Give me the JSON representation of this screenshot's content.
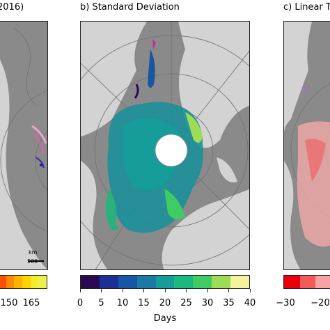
{
  "panels": {
    "a": {
      "title": "2016)"
    },
    "b": {
      "title": "b) Standard Deviation"
    },
    "c": {
      "title": "c) Linear T"
    }
  },
  "scalebar": {
    "unit": "km",
    "value": "500"
  },
  "colorbars": {
    "a": {
      "ticks": [
        "150",
        "165"
      ],
      "colors": [
        "#ff4f00",
        "#ff8a00",
        "#ffb300",
        "#ffd200",
        "#f3ee2d",
        "#eaf24a"
      ]
    },
    "b": {
      "ticks": [
        "0",
        "5",
        "10",
        "15",
        "20",
        "25",
        "30",
        "35",
        "40"
      ],
      "label": "Days",
      "colors": [
        "#2a0a55",
        "#1d2e94",
        "#1656a3",
        "#1b79a6",
        "#169c99",
        "#1db87f",
        "#3fcc62",
        "#9ddc55",
        "#f4f29a"
      ]
    },
    "c": {
      "ticks": [
        "−30",
        "−20"
      ],
      "colors": [
        "#e8000b",
        "#f35a5a",
        "#f7a3a3"
      ]
    }
  },
  "colors": {
    "ocean": "#8a8a8a",
    "land": "#d3d3d3"
  }
}
